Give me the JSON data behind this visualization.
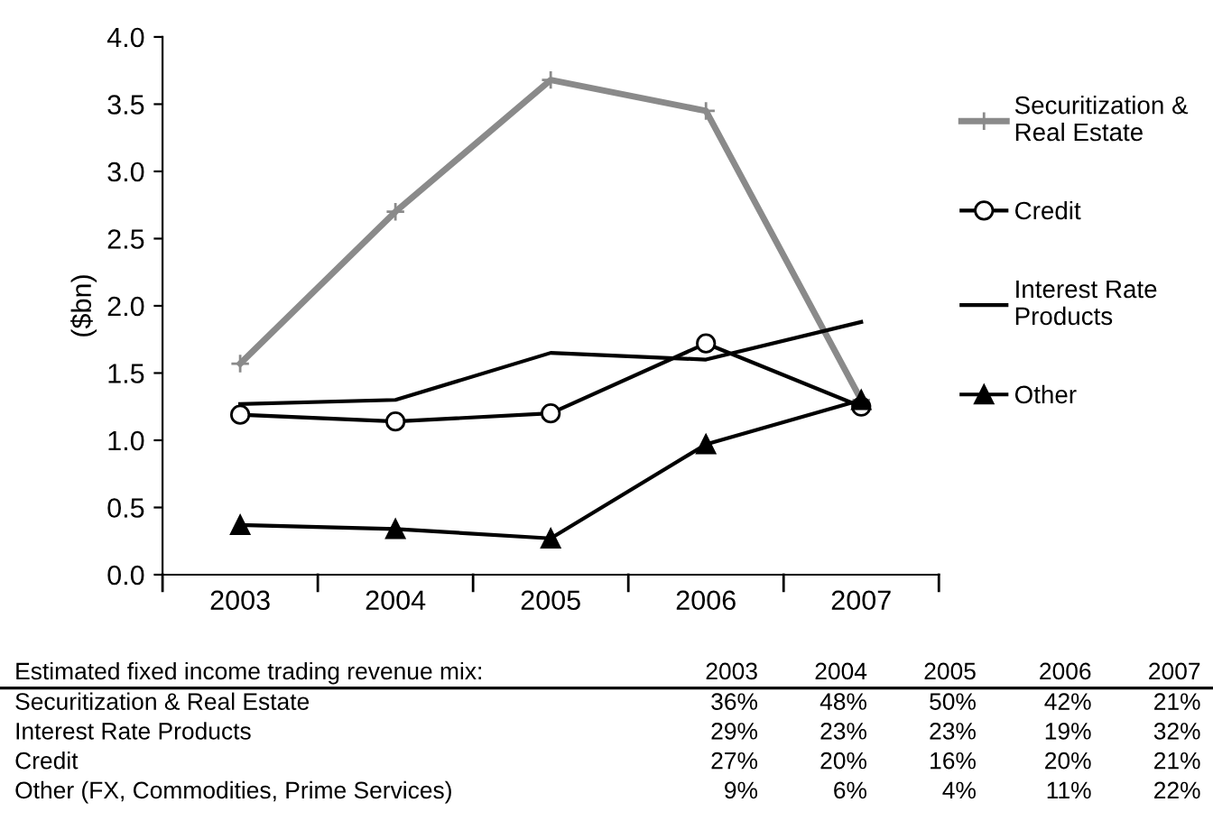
{
  "chart_data": {
    "type": "line",
    "ylabel": "($bn)",
    "categories": [
      "2003",
      "2004",
      "2005",
      "2006",
      "2007"
    ],
    "ylim": [
      0,
      4
    ],
    "yticks": [
      {
        "value": 0,
        "label": "0.0"
      },
      {
        "value": 0.5,
        "label": "0.5"
      },
      {
        "value": 1,
        "label": "1.0"
      },
      {
        "value": 1.5,
        "label": "1.5"
      },
      {
        "value": 2,
        "label": "2.0"
      },
      {
        "value": 2.5,
        "label": "2.5"
      },
      {
        "value": 3,
        "label": "3.0"
      },
      {
        "value": 3.5,
        "label": "3.5"
      },
      {
        "value": 4,
        "label": "4.0"
      }
    ],
    "legend": "right",
    "grid": false,
    "series": [
      {
        "name": "Securitization &\nReal Estate",
        "color": "#8a8a8a",
        "marker": "cross",
        "values": [
          1.57,
          2.7,
          3.68,
          3.45,
          1.3
        ]
      },
      {
        "name": "Credit",
        "color": "#000000",
        "marker": "circle",
        "values": [
          1.19,
          1.14,
          1.2,
          1.72,
          1.25
        ]
      },
      {
        "name": "Interest Rate\nProducts",
        "color": "#000000",
        "marker": "none",
        "values": [
          1.27,
          1.3,
          1.65,
          1.6,
          1.88
        ]
      },
      {
        "name": "Other",
        "color": "#000000",
        "marker": "triangle",
        "values": [
          0.37,
          0.34,
          0.27,
          0.97,
          1.3
        ]
      }
    ],
    "annotations": [
      "Estimated fixed income trading revenue mix:",
      "2003",
      "2004",
      "2005",
      "2006",
      "2007",
      "Securitization & Real Estate",
      "36%",
      "48%",
      "50%",
      "42%",
      "21%",
      "Interest Rate Products",
      "29%",
      "23%",
      "23%",
      "19%",
      "32%",
      "Credit",
      "27%",
      "20%",
      "16%",
      "20%",
      "21%",
      "Other (FX, Commodities, Prime Services)",
      "9%",
      "6%",
      "4%",
      "11%",
      "22%"
    ]
  }
}
